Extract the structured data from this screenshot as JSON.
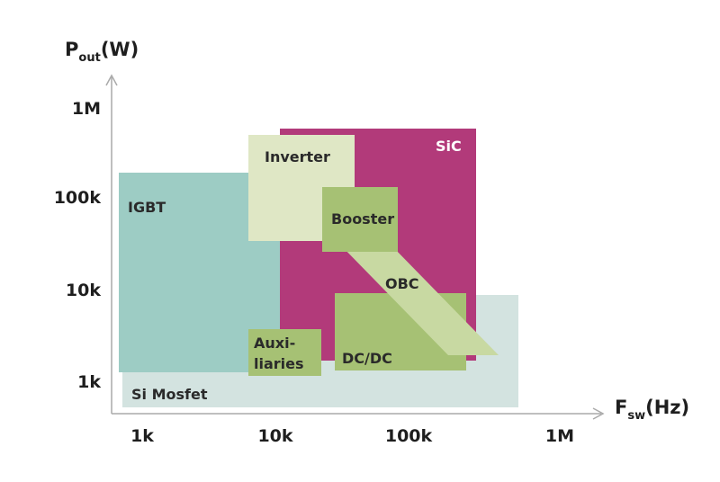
{
  "axes": {
    "y_title_main": "P",
    "y_title_sub": "out",
    "y_title_unit": "(W)",
    "x_title_main": "F",
    "x_title_sub": "sw",
    "x_title_unit": "(Hz)",
    "y_ticks": [
      "1M",
      "100k",
      "10k",
      "1k"
    ],
    "x_ticks": [
      "1k",
      "10k",
      "100k",
      "1M"
    ]
  },
  "regions": {
    "si_mosfet": "Si Mosfet",
    "igbt": "IGBT",
    "sic": "SiC",
    "inverter": "Inverter",
    "booster": "Booster",
    "obc": "OBC",
    "dcdc": "DC/DC",
    "auxiliaries_line1": "Auxi-",
    "auxiliaries_line2": "liaries"
  },
  "colors": {
    "si_mosfet": "#d3e3e0",
    "igbt": "#9dccc4",
    "sic": "#b23a7a",
    "inverter": "#dfe7c5",
    "application": "#a6c174",
    "obc": "#c8d9a2",
    "axis": "#aaaaaa"
  }
}
